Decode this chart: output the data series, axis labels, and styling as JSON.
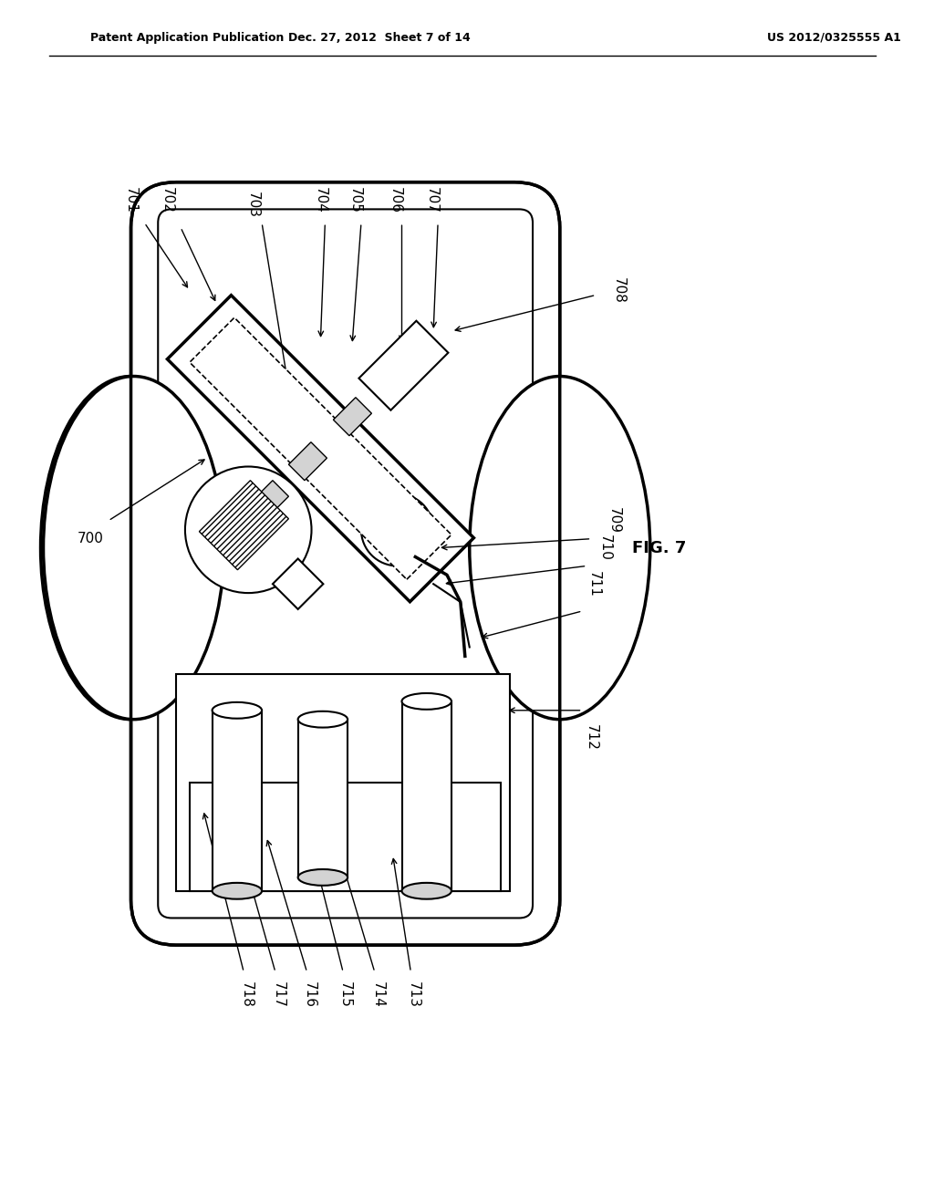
{
  "header_left": "Patent Application Publication",
  "header_mid": "Dec. 27, 2012  Sheet 7 of 14",
  "header_right": "US 2012/0325555 A1",
  "fig_label": "FIG. 7",
  "main_label": "700",
  "labels": [
    "701",
    "702",
    "703",
    "704",
    "705",
    "706",
    "707",
    "708",
    "709",
    "710",
    "711",
    "712",
    "713",
    "714",
    "715",
    "716",
    "717",
    "718"
  ],
  "bg_color": "#ffffff",
  "line_color": "#000000",
  "lw": 1.5,
  "lw_thick": 2.5
}
